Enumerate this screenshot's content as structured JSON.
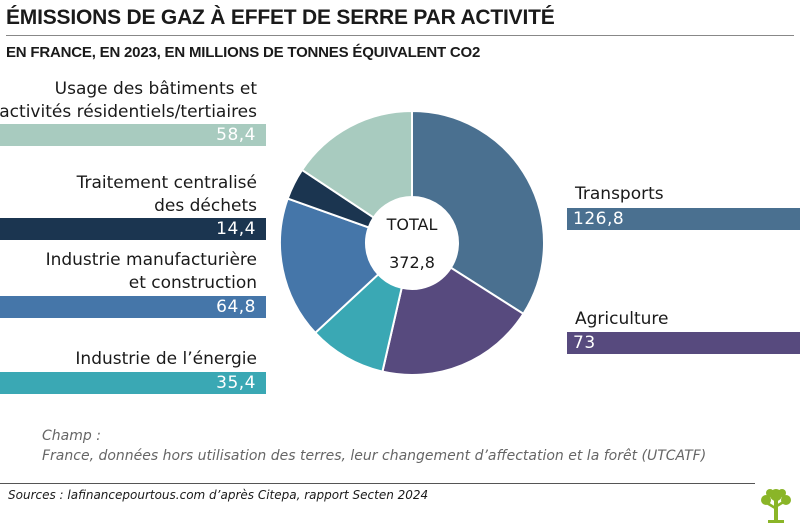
{
  "header": {
    "title": "ÉMISSIONS DE GAZ À EFFET DE SERRE PAR ACTIVITÉ",
    "subtitle": "EN FRANCE, EN 2023, EN MILLIONS DE TONNES ÉQUIVALENT CO2"
  },
  "chart_data": {
    "type": "pie",
    "title": "ÉMISSIONS DE GAZ À EFFET DE SERRE PAR ACTIVITÉ",
    "subtitle": "EN FRANCE, EN 2023, EN MILLIONS DE TONNES ÉQUIVALENT CO2",
    "unit": "millions de tonnes équivalent CO2",
    "center_label": "TOTAL",
    "total": "372,8",
    "slices": [
      {
        "key": "transports",
        "name": "Transports",
        "value": 126.8,
        "label": "126,8",
        "color": "#4a7090"
      },
      {
        "key": "agriculture",
        "name": "Agriculture",
        "value": 73,
        "label": "73",
        "color": "#574a7e"
      },
      {
        "key": "energie",
        "name": "Industrie de l’énergie",
        "value": 35.4,
        "label": "35,4",
        "color": "#3aa8b4"
      },
      {
        "key": "industrie",
        "name": "Industrie manufacturière et construction",
        "value": 64.8,
        "label": "64,8",
        "color": "#4576a9"
      },
      {
        "key": "dechets",
        "name": "Traitement centralisé des déchets",
        "value": 14.4,
        "label": "14,4",
        "color": "#1b3550"
      },
      {
        "key": "batiments",
        "name": "Usage des bâtiments et activités résidentiels/tertiaires",
        "value": 58.4,
        "label": "58,4",
        "color": "#a8cbbf"
      }
    ]
  },
  "labels": {
    "batiments": [
      "Usage des bâtiments et",
      "activités résidentiels/tertiaires"
    ],
    "dechets": [
      "Traitement centralisé",
      "des déchets"
    ],
    "industrie": [
      "Industrie manufacturière",
      "et construction"
    ],
    "energie": [
      "Industrie de l’énergie"
    ],
    "transports": [
      "Transports"
    ],
    "agriculture": [
      "Agriculture"
    ]
  },
  "notes": {
    "champ_title": "Champ :",
    "champ_text": "France, données hors utilisation des terres, leur changement d’affectation et la forêt (UTCATF)",
    "source": "Sources : lafinancepourtous.com d’après Citepa, rapport Secten 2024"
  },
  "logo": {
    "icon": "tree-logo-icon",
    "color": "#8ab528"
  }
}
